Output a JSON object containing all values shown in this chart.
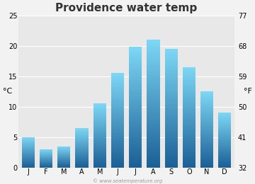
{
  "title": "Providence water temp",
  "months": [
    "J",
    "F",
    "M",
    "A",
    "M",
    "J",
    "J",
    "A",
    "S",
    "O",
    "N",
    "D"
  ],
  "values_c": [
    5.0,
    3.0,
    3.5,
    6.5,
    10.5,
    15.5,
    19.8,
    21.0,
    19.5,
    16.5,
    12.5,
    9.0
  ],
  "ylim_c": [
    0,
    25
  ],
  "yticks_c": [
    0,
    5,
    10,
    15,
    20,
    25
  ],
  "yticks_f": [
    32,
    41,
    50,
    59,
    68,
    77
  ],
  "ylabel_left": "°C",
  "ylabel_right": "°F",
  "bar_color_top": "#7dd8f5",
  "bar_color_bottom": "#1b5f96",
  "bg_color": "#f2f2f2",
  "plot_bg_color": "#e8e8e8",
  "watermark": "© www.seatemperature.org",
  "title_fontsize": 11,
  "axis_fontsize": 7,
  "label_fontsize": 8,
  "bar_width": 0.72
}
